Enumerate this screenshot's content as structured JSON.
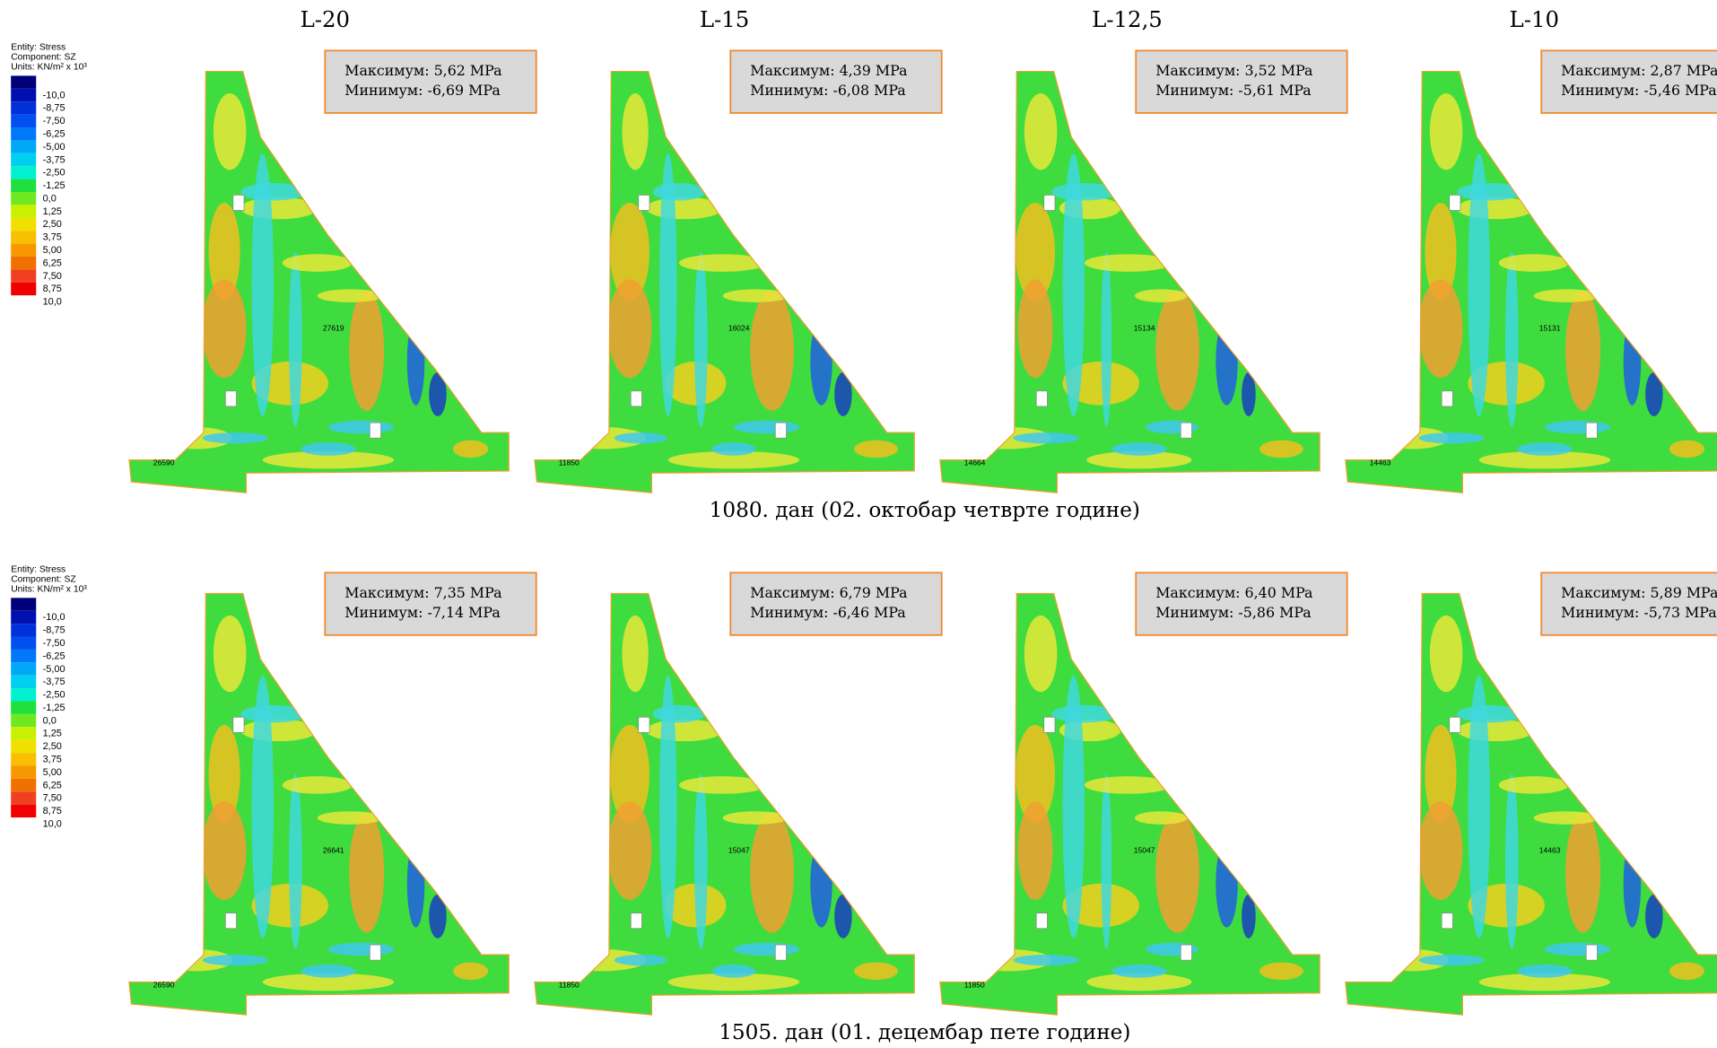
{
  "columns": [
    "L-20",
    "L-15",
    "L-12,5",
    "L-10"
  ],
  "legend": {
    "entity": "Entity: Stress",
    "component": "Component: SZ",
    "units": "Units: KN/m² x 10³",
    "levels": [
      "-10,0",
      "-8,75",
      "-7,50",
      "-6,25",
      "-5,00",
      "-3,75",
      "-2,50",
      "-1,25",
      "0,0",
      "1,25",
      "2,50",
      "3,75",
      "5,00",
      "6,25",
      "7,50",
      "8,75",
      "10,0"
    ]
  },
  "rows": [
    {
      "caption": "1080. дан (02. октобар четврте године)",
      "panels": [
        {
          "max": "Максимум: 5,62 MPa",
          "min": "Минимум: -6,69 MPa",
          "labels": [
            "27619",
            "26590"
          ]
        },
        {
          "max": "Максимум: 4,39 MPa",
          "min": "Минимум: -6,08 MPa",
          "labels": [
            "16024",
            "11850"
          ]
        },
        {
          "max": "Максимум: 3,52 MPa",
          "min": "Минимум: -5,61 MPa",
          "labels": [
            "15134",
            "14664"
          ]
        },
        {
          "max": "Максимум: 2,87 MPa",
          "min": "Минимум: -5,46 MPa",
          "labels": [
            "15131",
            "14463"
          ]
        }
      ]
    },
    {
      "caption": "1505. дан (01. децембар пете године)",
      "panels": [
        {
          "max": "Максимум: 7,35 MPa",
          "min": "Минимум: -7,14 MPa",
          "labels": [
            "26641",
            "26590"
          ]
        },
        {
          "max": "Максимум: 6,79 MPa",
          "min": "Минимум: -6,46 MPa",
          "labels": [
            "15047",
            "11850"
          ]
        },
        {
          "max": "Максимум: 6,40 MPa",
          "min": "Минимум: -5,86 MPa",
          "labels": [
            "15047",
            "11850"
          ]
        },
        {
          "max": "Максимум: 5,89 MPa",
          "min": "Минимум: -5,73 MPa",
          "labels": [
            "14463"
          ]
        }
      ]
    }
  ]
}
